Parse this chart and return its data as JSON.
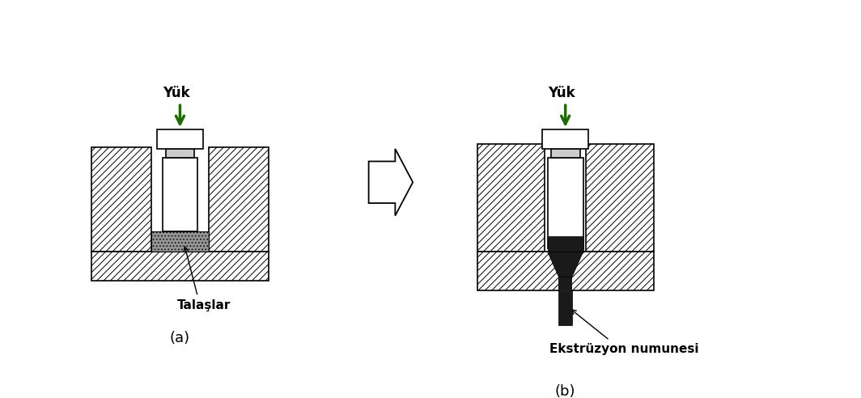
{
  "bg_color": "#ffffff",
  "text_color": "#000000",
  "arrow_color": "#1a6e00",
  "label_a": "(a)",
  "label_b": "(b)",
  "yuk_label": "Yük",
  "talaslar_label": "Talaşlar",
  "ekstruzyon_label": "Ekstrüzyon numunesi",
  "figsize": [
    10.64,
    4.92
  ],
  "dpi": 100
}
